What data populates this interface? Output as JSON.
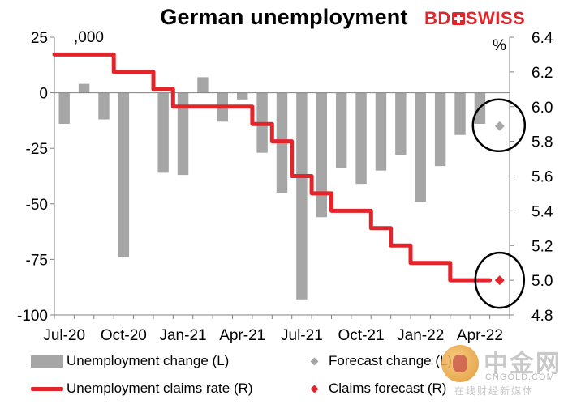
{
  "header": {
    "title": "German unemployment",
    "brand": {
      "left": "BD",
      "right": "SWISS"
    }
  },
  "chart_data": {
    "type": "bar",
    "title": "German unemployment",
    "left_unit_label": ",000",
    "right_unit_label": "%",
    "categories": [
      "Jul-20",
      "Aug-20",
      "Sep-20",
      "Oct-20",
      "Nov-20",
      "Dec-20",
      "Jan-21",
      "Feb-21",
      "Mar-21",
      "Apr-21",
      "May-21",
      "Jun-21",
      "Jul-21",
      "Aug-21",
      "Sep-21",
      "Oct-21",
      "Nov-21",
      "Dec-21",
      "Jan-22",
      "Feb-22",
      "Mar-22",
      "Apr-22",
      "May-22"
    ],
    "x_tick_labels": [
      "Jul-20",
      "Oct-20",
      "Jan-21",
      "Apr-21",
      "Jul-21",
      "Oct-21",
      "Jan-22",
      "Apr-22"
    ],
    "x_tick_every": 3,
    "left_axis": {
      "min": -100,
      "max": 25,
      "ticks": [
        "25",
        "0",
        "-25",
        "-50",
        "-75",
        "-100"
      ]
    },
    "right_axis": {
      "min": 4.8,
      "max": 6.4,
      "ticks": [
        "6.4",
        "6.2",
        "6.0",
        "5.8",
        "5.6",
        "5.4",
        "5.2",
        "5.0",
        "4.8"
      ]
    },
    "series": [
      {
        "name": "Unemployment change (L)",
        "type": "bar",
        "axis": "left",
        "color": "#a6a6a6",
        "values": [
          -14,
          4,
          -12,
          -74,
          0,
          -36,
          -37,
          7,
          -13,
          -3,
          -27,
          -45,
          -93,
          -56,
          -34,
          -41,
          -35,
          -28,
          -49,
          -33,
          -19,
          -14,
          null
        ]
      },
      {
        "name": "Forecast change (L)",
        "type": "marker",
        "axis": "left",
        "color": "#a6a6a6",
        "x": "May-22",
        "value": -15
      },
      {
        "name": "Unemployment claims rate (R)",
        "type": "line",
        "axis": "right",
        "color": "#e3242b",
        "values": [
          6.3,
          6.3,
          6.3,
          6.2,
          6.2,
          6.1,
          6.0,
          6.0,
          6.0,
          6.0,
          5.9,
          5.8,
          5.6,
          5.5,
          5.4,
          5.4,
          5.3,
          5.2,
          5.1,
          5.1,
          5.0,
          5.0,
          null
        ]
      },
      {
        "name": "Claims forecast (R)",
        "type": "marker",
        "axis": "right",
        "color": "#e3242b",
        "x": "May-22",
        "value": 5.0
      }
    ],
    "grid": false,
    "legend_position": "bottom"
  },
  "watermark": {
    "cn": "中金网",
    "url": "CNGOLD.COM",
    "sub": "在线财经新媒体"
  }
}
